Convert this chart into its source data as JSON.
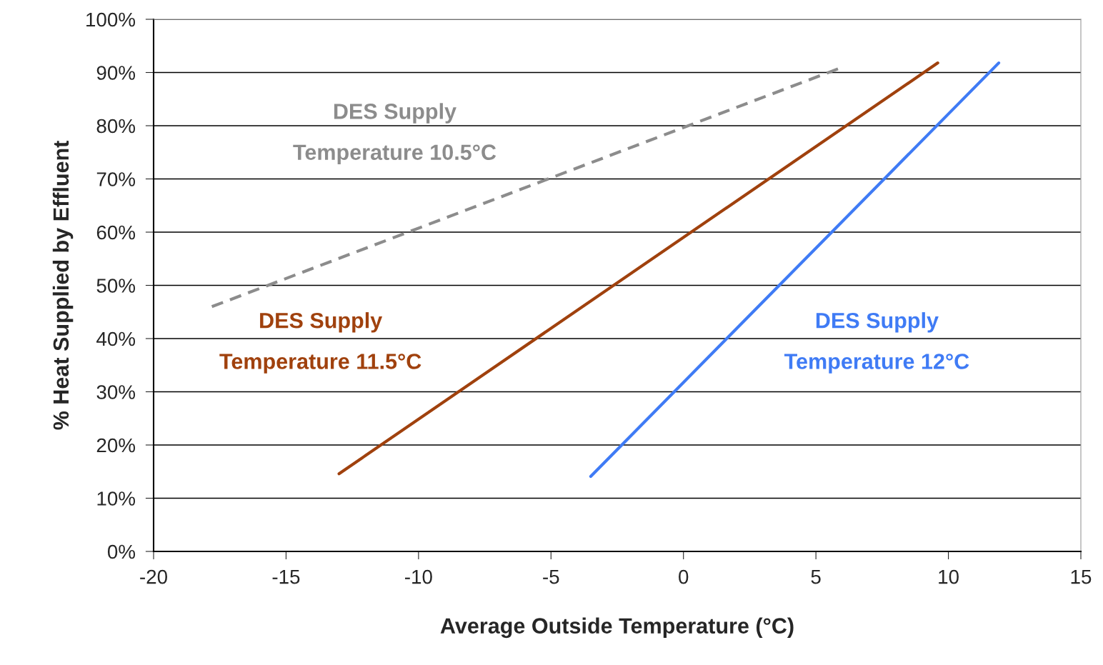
{
  "chart_data": {
    "type": "line",
    "xlabel": "Average Outside Temperature (°C)",
    "ylabel": "% Heat Supplied by Effluent",
    "xlim": [
      -20,
      15
    ],
    "xticks": [
      -20,
      -15,
      -10,
      -5,
      0,
      5,
      10,
      15
    ],
    "ylim": [
      0,
      100
    ],
    "yticks": [
      {
        "value": 0,
        "label": "0%"
      },
      {
        "value": 10,
        "label": "10%"
      },
      {
        "value": 20,
        "label": "20%"
      },
      {
        "value": 30,
        "label": "30%"
      },
      {
        "value": 40,
        "label": "40%"
      },
      {
        "value": 50,
        "label": "50%"
      },
      {
        "value": 60,
        "label": "60%"
      },
      {
        "value": 70,
        "label": "70%"
      },
      {
        "value": 80,
        "label": "80%"
      },
      {
        "value": 90,
        "label": "90%"
      },
      {
        "value": 100,
        "label": "100%"
      }
    ],
    "grid": "y",
    "legend": false,
    "marker": "none",
    "series": [
      {
        "name": "DES Supply\nTemperature 10.5°C",
        "color": "#8c8c8c",
        "line_style": "dashed",
        "x": [
          -17.8,
          6
        ],
        "values": [
          46,
          91
        ]
      },
      {
        "name": "DES Supply\nTemperature 11.5°C",
        "color": "#a0410d",
        "line_style": "solid",
        "x": [
          -13,
          9.6
        ],
        "values": [
          14.6,
          91.8
        ]
      },
      {
        "name": "DES Supply\nTemperature 12°C",
        "color": "#3f7bf5",
        "line_style": "solid",
        "x": [
          -3.5,
          11.9
        ],
        "values": [
          14.1,
          91.8
        ]
      }
    ]
  }
}
